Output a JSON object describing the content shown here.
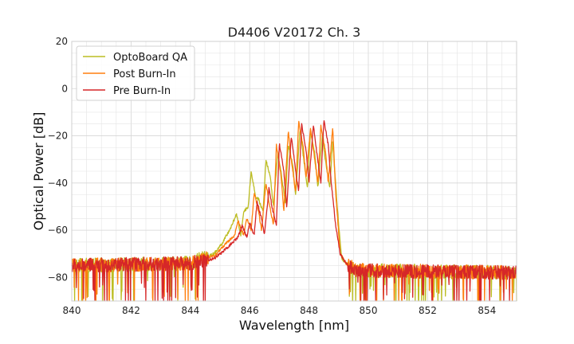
{
  "chart_data": {
    "type": "line",
    "title": "D4406 V20172 Ch. 3",
    "xlabel": "Wavelength [nm]",
    "ylabel": "Optical Power [dB]",
    "xlim": [
      840,
      855
    ],
    "ylim": [
      -90,
      20
    ],
    "xticks": [
      "840",
      "842",
      "844",
      "846",
      "848",
      "850",
      "852",
      "854"
    ],
    "yticks": [
      "20",
      "0",
      "−20",
      "−40",
      "−60",
      "−80"
    ],
    "grid": true,
    "legend_position": "top-left",
    "series": [
      {
        "name": "OptoBoard QA",
        "color": "#bcbd22",
        "x": [
          840,
          844,
          844.8,
          845.1,
          845.4,
          845.55,
          845.7,
          845.8,
          845.95,
          846.05,
          846.2,
          846.3,
          846.45,
          846.55,
          846.7,
          846.8,
          846.95,
          847.05,
          847.2,
          847.3,
          847.45,
          847.55,
          847.7,
          847.8,
          847.95,
          848.05,
          848.2,
          848.3,
          848.45,
          848.55,
          848.7,
          848.8,
          848.95,
          849.1,
          849.5,
          855
        ],
        "y": [
          -75,
          -74,
          -70,
          -65,
          -58,
          -53,
          -62,
          -52,
          -50,
          -35,
          -46,
          -47,
          -52,
          -30,
          -38,
          -50,
          -27,
          -35,
          -48,
          -24,
          -32,
          -45,
          -17,
          -28,
          -42,
          -18,
          -28,
          -42,
          -20,
          -30,
          -42,
          -22,
          -50,
          -72,
          -77,
          -78
        ]
      },
      {
        "name": "Post Burn-In",
        "color": "#ff7f0e",
        "x": [
          840,
          844,
          844.8,
          845.1,
          845.5,
          845.6,
          845.8,
          845.9,
          846.05,
          846.15,
          846.3,
          846.4,
          846.55,
          846.65,
          846.8,
          846.9,
          847.05,
          847.15,
          847.3,
          847.4,
          847.55,
          847.65,
          847.8,
          847.9,
          848.05,
          848.15,
          848.3,
          848.4,
          848.55,
          848.65,
          848.8,
          848.9,
          849.05,
          849.25,
          849.6,
          855
        ],
        "y": [
          -75,
          -74,
          -71,
          -67,
          -62,
          -56,
          -62,
          -55,
          -60,
          -44,
          -52,
          -60,
          -40,
          -48,
          -58,
          -24,
          -36,
          -52,
          -18,
          -30,
          -44,
          -14,
          -24,
          -38,
          -17,
          -26,
          -40,
          -16,
          -26,
          -40,
          -16,
          -44,
          -70,
          -74,
          -77,
          -78
        ]
      },
      {
        "name": "Pre Burn-In",
        "color": "#d62728",
        "x": [
          840,
          844,
          844.8,
          845.2,
          845.6,
          845.75,
          845.9,
          846.0,
          846.15,
          846.25,
          846.4,
          846.5,
          846.65,
          846.75,
          846.9,
          847.0,
          847.15,
          847.25,
          847.4,
          847.5,
          847.65,
          847.75,
          847.9,
          848.0,
          848.15,
          848.25,
          848.4,
          848.5,
          848.65,
          848.75,
          848.9,
          849.05,
          849.25,
          849.6,
          855
        ],
        "y": [
          -75,
          -74,
          -72,
          -68,
          -63,
          -58,
          -63,
          -57,
          -62,
          -48,
          -55,
          -62,
          -42,
          -50,
          -58,
          -23,
          -35,
          -50,
          -20,
          -30,
          -44,
          -15,
          -26,
          -40,
          -15,
          -26,
          -40,
          -13,
          -24,
          -40,
          -58,
          -70,
          -74,
          -77,
          -78
        ]
      }
    ]
  }
}
